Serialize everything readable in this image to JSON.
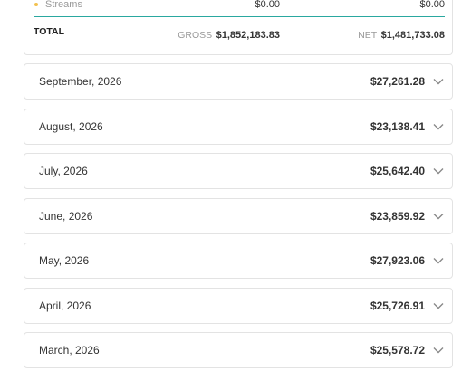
{
  "summary": {
    "streams": {
      "label": "Streams",
      "gross": "$0.00",
      "net": "$0.00"
    },
    "total": {
      "label": "TOTAL",
      "gross_label": "GROSS",
      "gross": "$1,852,183.83",
      "net_label": "NET",
      "net": "$1,481,733.08"
    }
  },
  "months": [
    {
      "label": "September, 2026",
      "amount": "$27,261.28"
    },
    {
      "label": "August, 2026",
      "amount": "$23,138.41"
    },
    {
      "label": "July, 2026",
      "amount": "$25,642.40"
    },
    {
      "label": "June, 2026",
      "amount": "$23,859.92"
    },
    {
      "label": "May, 2026",
      "amount": "$27,923.06"
    },
    {
      "label": "April, 2026",
      "amount": "$25,726.91"
    },
    {
      "label": "March, 2026",
      "amount": "$25,578.72"
    }
  ]
}
